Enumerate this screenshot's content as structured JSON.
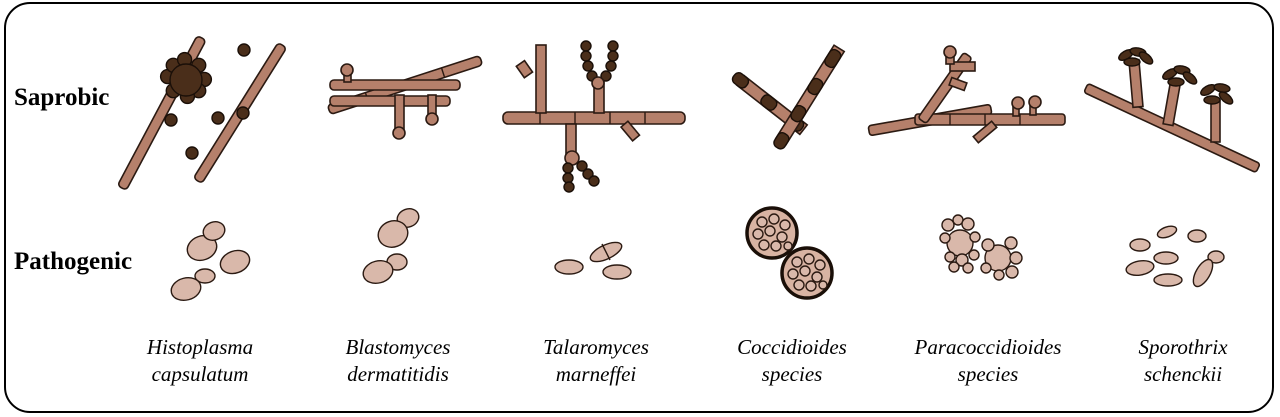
{
  "rows": {
    "saprobic": "Saprobic",
    "pathogenic": "Pathogenic"
  },
  "species": [
    {
      "line1": "Histoplasma",
      "line2": "capsulatum"
    },
    {
      "line1": "Blastomyces",
      "line2": "dermatitidis"
    },
    {
      "line1": "Talaromyces",
      "line2": "marneffei"
    },
    {
      "line1": "Coccidioides",
      "line2": "species"
    },
    {
      "line1": "Paracoccidioides",
      "line2": "species"
    },
    {
      "line1": "Sporothrix",
      "line2": "schenckii"
    }
  ],
  "colors": {
    "hypha": "#b5806b",
    "spore_dark": "#4a2e1a",
    "yeast_cell": "#d9b8aa",
    "outline": "#2b1a12"
  }
}
